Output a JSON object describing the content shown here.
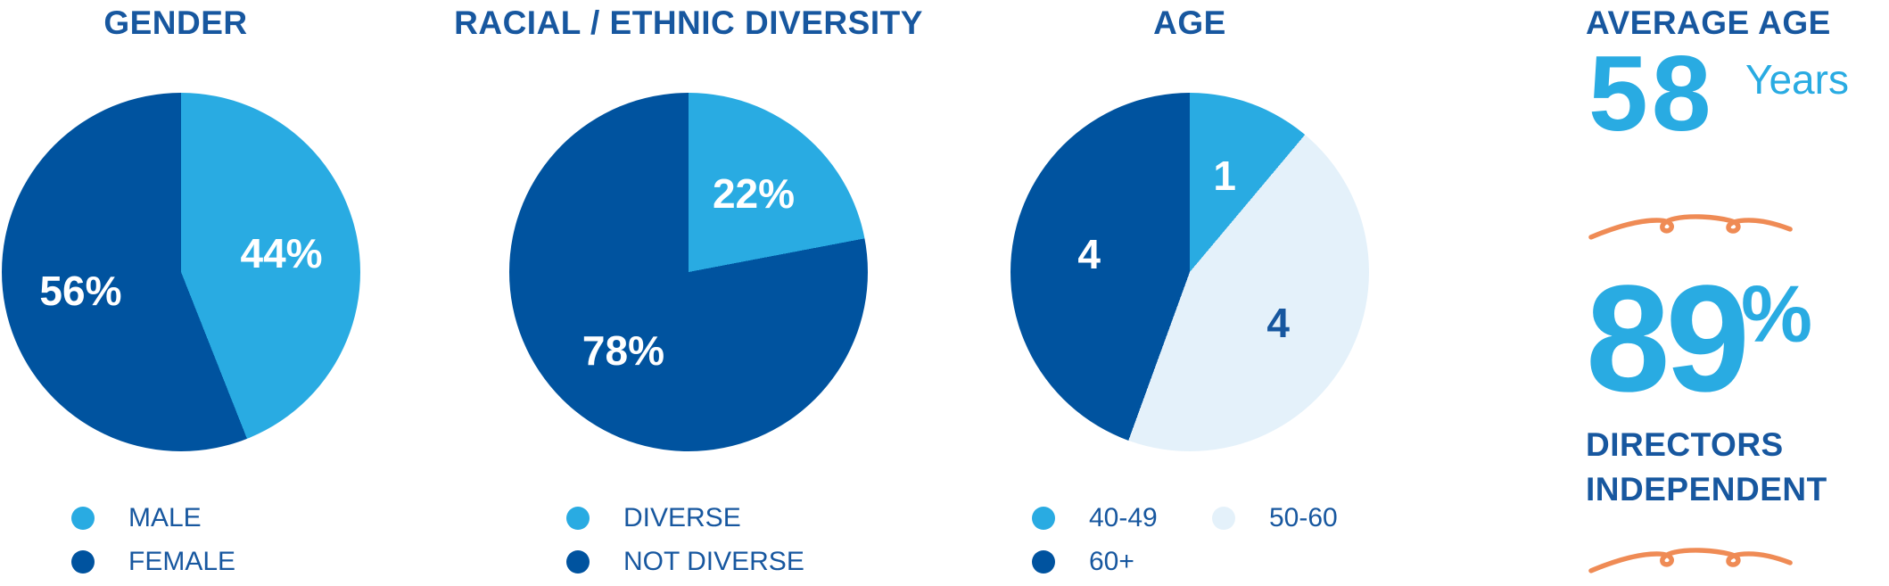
{
  "colors": {
    "light_blue": "#29ABE2",
    "dark_blue": "#00539F",
    "pale_blue": "#E4F1FA",
    "text_blue": "#17579F",
    "orange": "#EF8B55",
    "white": "#FFFFFF"
  },
  "chart_data": [
    {
      "type": "pie",
      "title": "GENDER",
      "labels": [
        "MALE",
        "FEMALE"
      ],
      "values": [
        44,
        56
      ],
      "unit": "percent",
      "slice_labels": [
        "44%",
        "56%"
      ],
      "colors": [
        "#29ABE2",
        "#00539F"
      ],
      "slice_label_colors": [
        "#FFFFFF",
        "#FFFFFF"
      ],
      "start_angle_deg": 0,
      "direction": "clockwise",
      "legend_position": "bottom",
      "legend_columns": [
        [
          {
            "label": "MALE",
            "color": "#29ABE2"
          },
          {
            "label": "FEMALE",
            "color": "#00539F"
          }
        ]
      ]
    },
    {
      "type": "pie",
      "title": "RACIAL / ETHNIC DIVERSITY",
      "labels": [
        "DIVERSE",
        "NOT DIVERSE"
      ],
      "values": [
        22,
        78
      ],
      "unit": "percent",
      "slice_labels": [
        "22%",
        "78%"
      ],
      "colors": [
        "#29ABE2",
        "#00539F"
      ],
      "slice_label_colors": [
        "#FFFFFF",
        "#FFFFFF"
      ],
      "start_angle_deg": 0,
      "direction": "clockwise",
      "legend_position": "bottom",
      "legend_columns": [
        [
          {
            "label": "DIVERSE",
            "color": "#29ABE2"
          },
          {
            "label": "NOT DIVERSE",
            "color": "#00539F"
          }
        ]
      ]
    },
    {
      "type": "pie",
      "title": "AGE",
      "labels": [
        "40-49",
        "50-60",
        "60+"
      ],
      "values": [
        1,
        4,
        4
      ],
      "unit": "count",
      "slice_labels": [
        "1",
        "4",
        "4"
      ],
      "colors": [
        "#29ABE2",
        "#E4F1FA",
        "#00539F"
      ],
      "slice_label_colors": [
        "#FFFFFF",
        "#17579F",
        "#FFFFFF"
      ],
      "start_angle_deg": 0,
      "direction": "clockwise",
      "legend_position": "bottom",
      "legend_columns": [
        [
          {
            "label": "40-49",
            "color": "#29ABE2"
          },
          {
            "label": "60+",
            "color": "#00539F"
          }
        ],
        [
          {
            "label": "50-60",
            "color": "#E4F1FA"
          }
        ]
      ]
    }
  ],
  "stats_panel": {
    "title": "AVERAGE AGE",
    "average_age": {
      "value": "58",
      "suffix": "Years"
    },
    "independence": {
      "value": "89",
      "suffix": "%",
      "caption_line1": "DIRECTORS",
      "caption_line2": "INDEPENDENT"
    }
  }
}
